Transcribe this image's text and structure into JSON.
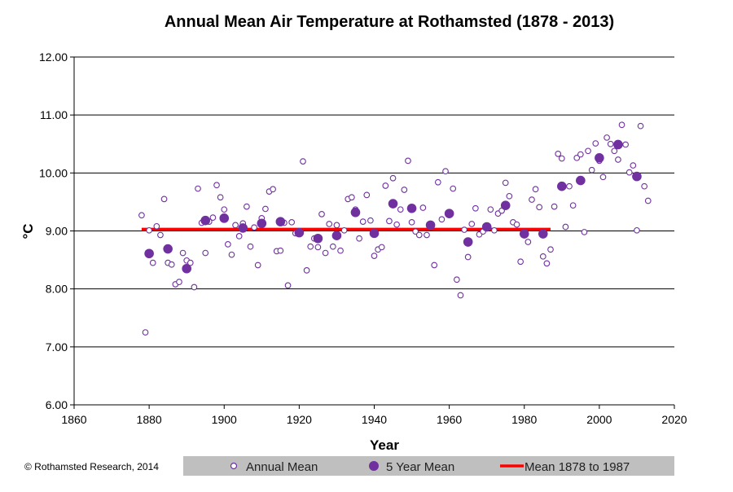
{
  "chart_data": {
    "type": "scatter",
    "title": "Annual Mean Air Temperature at Rothamsted (1878 - 2013)",
    "xlabel": "Year",
    "ylabel": "°C",
    "xlim": [
      1860,
      2020
    ],
    "ylim": [
      6.0,
      12.0
    ],
    "x_ticks": [
      "1860",
      "1880",
      "1900",
      "1920",
      "1940",
      "1960",
      "1980",
      "2000",
      "2020"
    ],
    "y_ticks": [
      "6.00",
      "7.00",
      "8.00",
      "9.00",
      "10.00",
      "11.00",
      "12.00"
    ],
    "grid": "horizontal",
    "legend_position": "bottom",
    "copyright": "© Rothamsted Research, 2014",
    "colors": {
      "annual": "#7030a0",
      "five_year": "#7030a0",
      "mean_line": "#ff0000"
    },
    "series": [
      {
        "name": "Annual Mean",
        "marker": "open-circle",
        "x": [
          1878,
          1879,
          1880,
          1881,
          1882,
          1883,
          1884,
          1885,
          1886,
          1887,
          1888,
          1889,
          1890,
          1891,
          1892,
          1893,
          1894,
          1895,
          1896,
          1897,
          1898,
          1899,
          1900,
          1901,
          1902,
          1903,
          1904,
          1905,
          1906,
          1907,
          1908,
          1909,
          1910,
          1911,
          1912,
          1913,
          1914,
          1915,
          1916,
          1917,
          1918,
          1919,
          1920,
          1921,
          1922,
          1923,
          1924,
          1925,
          1926,
          1927,
          1928,
          1929,
          1930,
          1931,
          1932,
          1933,
          1934,
          1935,
          1936,
          1937,
          1938,
          1939,
          1940,
          1941,
          1942,
          1943,
          1944,
          1945,
          1946,
          1947,
          1948,
          1949,
          1950,
          1951,
          1952,
          1953,
          1954,
          1955,
          1956,
          1957,
          1958,
          1959,
          1960,
          1961,
          1962,
          1963,
          1964,
          1965,
          1966,
          1967,
          1968,
          1969,
          1970,
          1971,
          1972,
          1973,
          1974,
          1975,
          1976,
          1977,
          1978,
          1979,
          1980,
          1981,
          1982,
          1983,
          1984,
          1985,
          1986,
          1987,
          1988,
          1989,
          1990,
          1991,
          1992,
          1993,
          1994,
          1995,
          1996,
          1997,
          1998,
          1999,
          2000,
          2001,
          2002,
          2003,
          2004,
          2005,
          2006,
          2007,
          2008,
          2009,
          2010,
          2011,
          2012,
          2013
        ],
        "values": [
          9.27,
          7.25,
          9.01,
          8.45,
          9.08,
          8.93,
          9.55,
          8.45,
          8.42,
          8.08,
          8.12,
          8.62,
          8.49,
          8.45,
          8.03,
          9.73,
          9.14,
          8.62,
          9.16,
          9.23,
          9.79,
          9.58,
          9.37,
          8.77,
          8.59,
          9.1,
          8.91,
          9.13,
          9.42,
          8.73,
          9.06,
          8.41,
          9.22,
          9.38,
          9.68,
          9.72,
          8.65,
          8.66,
          9.14,
          8.06,
          9.15,
          8.96,
          8.95,
          10.2,
          8.32,
          8.73,
          8.87,
          8.72,
          9.29,
          8.62,
          9.12,
          8.73,
          9.1,
          8.66,
          9.01,
          9.55,
          9.58,
          9.37,
          8.87,
          9.16,
          9.62,
          9.18,
          8.57,
          8.68,
          8.72,
          9.78,
          9.17,
          9.91,
          9.11,
          9.37,
          9.71,
          10.21,
          9.15,
          8.99,
          8.93,
          9.4,
          8.93,
          9.07,
          8.41,
          9.84,
          9.2,
          10.03,
          9.3,
          9.73,
          8.16,
          7.89,
          9.02,
          8.55,
          9.12,
          9.39,
          8.94,
          8.99,
          9.08,
          9.37,
          9.01,
          9.3,
          9.35,
          9.83,
          9.6,
          9.15,
          9.11,
          8.47,
          8.96,
          8.81,
          9.54,
          9.72,
          9.41,
          8.56,
          8.44,
          8.68,
          9.42,
          10.33,
          10.25,
          9.07,
          9.77,
          9.44,
          10.26,
          10.32,
          8.98,
          10.38,
          10.05,
          10.51,
          10.21,
          9.93,
          10.61,
          10.5,
          10.38,
          10.23,
          10.83,
          10.49,
          10.01,
          10.13,
          9.01,
          10.81,
          9.77,
          9.52
        ]
      },
      {
        "name": "5 Year Mean",
        "marker": "filled-circle",
        "x": [
          1880,
          1885,
          1890,
          1895,
          1900,
          1905,
          1910,
          1915,
          1920,
          1925,
          1930,
          1935,
          1940,
          1945,
          1950,
          1955,
          1960,
          1965,
          1970,
          1975,
          1980,
          1985,
          1990,
          1995,
          2000,
          2005,
          2010
        ],
        "values": [
          8.61,
          8.69,
          8.35,
          9.18,
          9.22,
          9.05,
          9.13,
          9.16,
          8.97,
          8.87,
          8.92,
          9.32,
          8.96,
          9.47,
          9.39,
          9.1,
          9.3,
          8.81,
          9.07,
          9.44,
          8.95,
          8.95,
          9.77,
          9.87,
          10.26,
          10.49,
          9.94
        ]
      },
      {
        "name": "Mean 1878 to 1987",
        "marker": "line",
        "x": [
          1878,
          1987
        ],
        "values": [
          9.03,
          9.03
        ]
      }
    ]
  }
}
